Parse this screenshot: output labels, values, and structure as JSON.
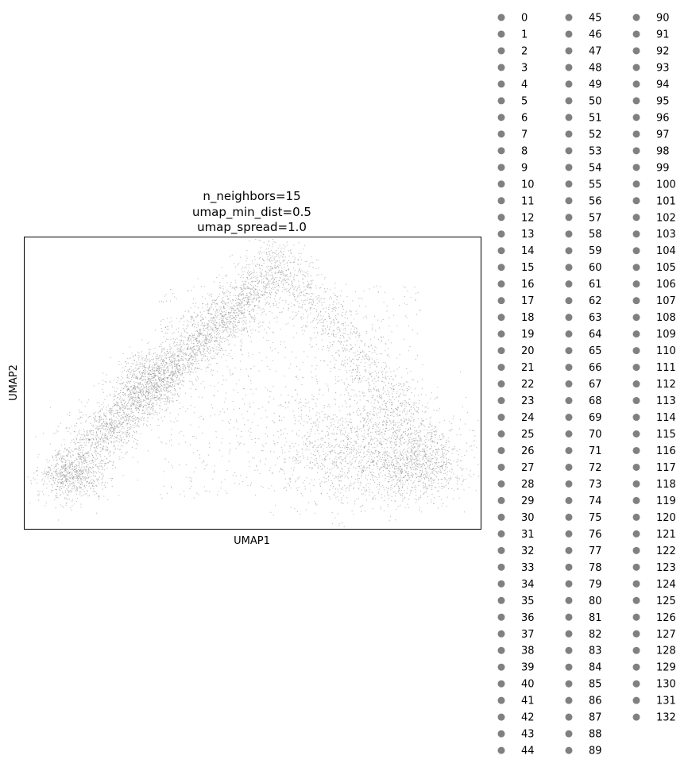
{
  "chart_data": {
    "type": "scatter",
    "title_lines": [
      "n_neighbors=15",
      "umap_min_dist=0.5",
      "umap_spread=1.0"
    ],
    "xlabel": "UMAP1",
    "ylabel": "UMAP2",
    "show_ticks": false,
    "grid": false,
    "point_color": "#808080",
    "legend": {
      "placement": "outside-right",
      "columns": 3,
      "marker_color": "#808080",
      "entries": [
        "0",
        "1",
        "2",
        "3",
        "4",
        "5",
        "6",
        "7",
        "8",
        "9",
        "10",
        "11",
        "12",
        "13",
        "14",
        "15",
        "16",
        "17",
        "18",
        "19",
        "20",
        "21",
        "22",
        "23",
        "24",
        "25",
        "26",
        "27",
        "28",
        "29",
        "30",
        "31",
        "32",
        "33",
        "34",
        "35",
        "36",
        "37",
        "38",
        "39",
        "40",
        "41",
        "42",
        "43",
        "44",
        "45",
        "46",
        "47",
        "48",
        "49",
        "50",
        "51",
        "52",
        "53",
        "54",
        "55",
        "56",
        "57",
        "58",
        "59",
        "60",
        "61",
        "62",
        "63",
        "64",
        "65",
        "66",
        "67",
        "68",
        "69",
        "70",
        "71",
        "72",
        "73",
        "74",
        "75",
        "76",
        "77",
        "78",
        "79",
        "80",
        "81",
        "82",
        "83",
        "84",
        "85",
        "86",
        "87",
        "88",
        "89",
        "90",
        "91",
        "92",
        "93",
        "94",
        "95",
        "96",
        "97",
        "98",
        "99",
        "100",
        "101",
        "102",
        "103",
        "104",
        "105",
        "106",
        "107",
        "108",
        "109",
        "110",
        "111",
        "112",
        "113",
        "114",
        "115",
        "116",
        "117",
        "118",
        "119",
        "120",
        "121",
        "122",
        "123",
        "124",
        "125",
        "126",
        "127",
        "128",
        "129",
        "130",
        "131",
        "132"
      ]
    }
  }
}
